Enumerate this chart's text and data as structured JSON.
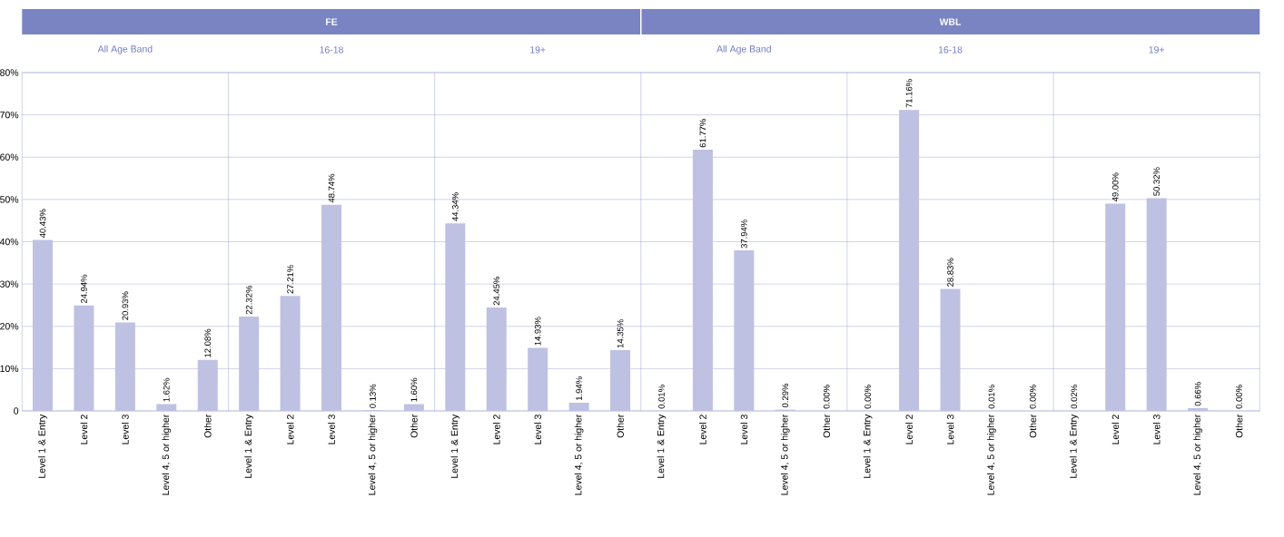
{
  "chart_data": {
    "type": "bar",
    "color": "#bec1e2",
    "categories": [
      "Level 1 & Entry",
      "Level 2",
      "Level 3",
      "Level 4, 5 or higher",
      "Other",
      "Level 1 & Entry",
      "Level 2",
      "Level 3",
      "Level 4, 5 or higher",
      "Other",
      "Level 1 & Entry",
      "Level 2",
      "Level 3",
      "Level 4, 5 or higher",
      "Other",
      "Level 1 & Entry",
      "Level 2",
      "Level 3",
      "Level 4, 5 or higher",
      "Other",
      "Level 1 & Entry",
      "Level 2",
      "Level 3",
      "Level 4, 5 or higher",
      "Other",
      "Level 1 & Entry",
      "Level 2",
      "Level 3",
      "Level 4, 5 or higher",
      "Other"
    ],
    "values": [
      40.43,
      24.94,
      20.93,
      1.62,
      12.08,
      22.32,
      27.21,
      48.74,
      0.13,
      1.6,
      44.34,
      24.45,
      14.93,
      1.94,
      14.35,
      0.01,
      61.77,
      37.94,
      0.29,
      0.0,
      0.0,
      71.16,
      28.83,
      0.01,
      0.0,
      0.02,
      49.0,
      50.32,
      0.66,
      0.0
    ],
    "value_labels": [
      "40.43%",
      "24.94%",
      "20.93%",
      "1.62%",
      "12.08%",
      "22.32%",
      "27.21%",
      "48.74%",
      "0.13%",
      "1.60%",
      "44.34%",
      "24.45%",
      "14.93%",
      "1.94%",
      "14.35%",
      "0.01%",
      "61.77%",
      "37.94%",
      "0.29%",
      "0.00%",
      "0.00%",
      "71.16%",
      "28.83%",
      "0.01%",
      "0.00%",
      "0.02%",
      "49.00%",
      "50.32%",
      "0.66%",
      "0.00%"
    ],
    "ylim": [
      0,
      80
    ],
    "yticks": [
      0,
      {
        "value": 10,
        "label": "10%"
      },
      {
        "value": 20,
        "label": "20%"
      },
      {
        "value": 30,
        "label": "30%"
      },
      {
        "value": 40,
        "label": "40%"
      },
      {
        "value": 50,
        "label": "50%"
      },
      {
        "value": 60,
        "label": "60%"
      },
      {
        "value": 70,
        "label": "70%"
      },
      {
        "value": 80,
        "label": "80%"
      }
    ],
    "grid": "y",
    "annotations": [
      "FE",
      "WBL",
      "All Age Band",
      "16-18",
      "19+",
      "All Age Band",
      "16-18",
      "19+"
    ]
  }
}
